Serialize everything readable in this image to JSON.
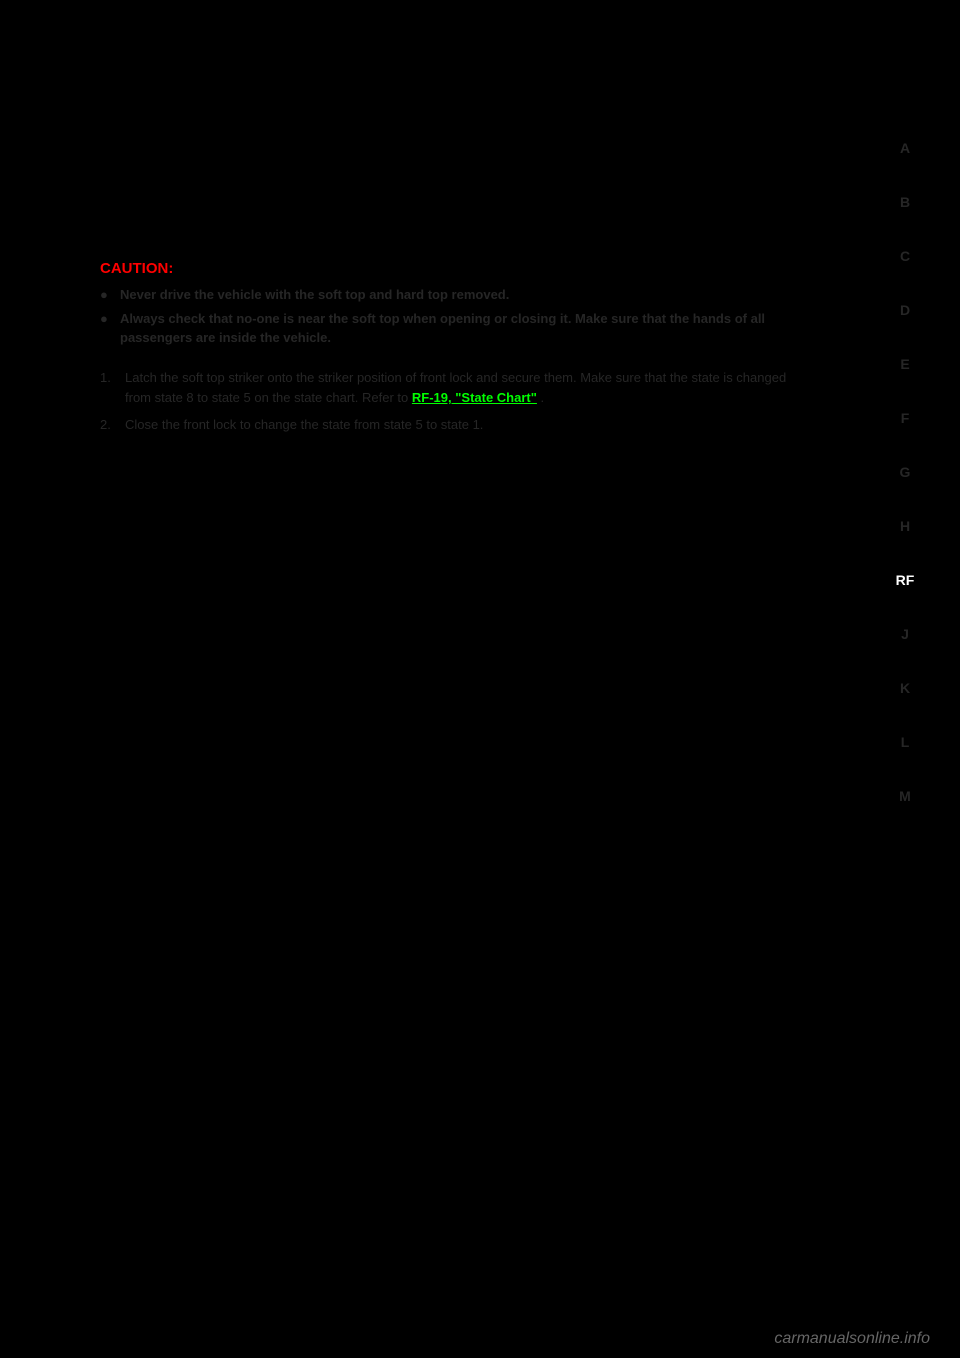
{
  "sidebar": {
    "items": [
      {
        "label": "A",
        "active": false
      },
      {
        "label": "B",
        "active": false
      },
      {
        "label": "C",
        "active": false
      },
      {
        "label": "D",
        "active": false
      },
      {
        "label": "E",
        "active": false
      },
      {
        "label": "F",
        "active": false
      },
      {
        "label": "G",
        "active": false
      },
      {
        "label": "H",
        "active": false
      },
      {
        "label": "RF",
        "active": true
      },
      {
        "label": "J",
        "active": false
      },
      {
        "label": "K",
        "active": false
      },
      {
        "label": "L",
        "active": false
      },
      {
        "label": "M",
        "active": false
      }
    ]
  },
  "content": {
    "caution_label": "CAUTION:",
    "caution_bullets": [
      "Never drive the vehicle with the soft top and hard top removed.",
      "Always check that no-one is near the soft top when opening or closing it. Make sure that the hands of all passengers are inside the vehicle."
    ],
    "step1_num": "1.",
    "step1_text": "Latch the soft top striker onto the striker position of front lock and secure them. Make sure that the state is changed from state 8 to state 5 on the state chart.",
    "step1_link_prefix": "Refer to ",
    "step1_link": "RF-19, \"State Chart\"",
    "step1_link_suffix": " .",
    "step2_num": "2.",
    "step2_text": "Close the front lock to change the state from state 5 to state 1."
  },
  "watermark": "carmanualsonline.info",
  "colors": {
    "background": "#000000",
    "caution": "#ff0000",
    "link": "#00ff00",
    "text_dark": "#262626",
    "text_active": "#ffffff",
    "watermark": "#666666"
  }
}
